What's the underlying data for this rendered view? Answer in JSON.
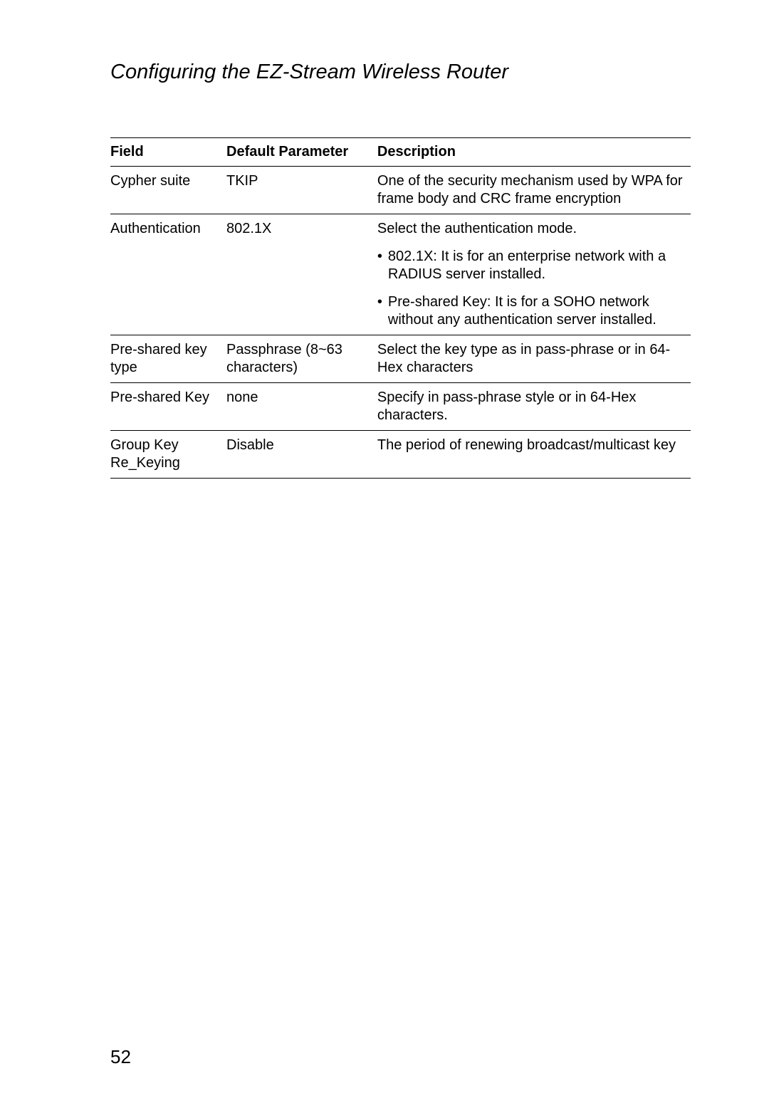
{
  "page": {
    "title": "Configuring the EZ-Stream Wireless Router",
    "number": "52"
  },
  "table": {
    "headers": {
      "field": "Field",
      "default": "Default Parameter",
      "description": "Description"
    },
    "rows": [
      {
        "field": "Cypher suite",
        "default": "TKIP",
        "desc": "One of the security mechanism used by WPA for frame body and CRC frame encryption"
      },
      {
        "field": "Authentication",
        "default": "802.1X",
        "desc_intro": "Select the authentication mode.",
        "bullet1": "802.1X: It is for an enterprise network with a RADIUS server installed.",
        "bullet2": "Pre-shared Key: It is for a SOHO network without any authentication server installed."
      },
      {
        "field": "Pre-shared key type",
        "default": "Passphrase (8~63 characters)",
        "desc": "Select the key type as in pass-phrase or in 64-Hex characters"
      },
      {
        "field": "Pre-shared Key",
        "default": "none",
        "desc": "Specify in pass-phrase style or in 64-Hex characters."
      },
      {
        "field": "Group Key Re_Keying",
        "default": "Disable",
        "desc": "The period of renewing broadcast/multicast key"
      }
    ]
  },
  "style": {
    "background_color": "#ffffff",
    "text_color": "#000000",
    "title_fontsize": 29,
    "body_fontsize": 20,
    "pagenum_fontsize": 26,
    "border_color": "#000000"
  }
}
